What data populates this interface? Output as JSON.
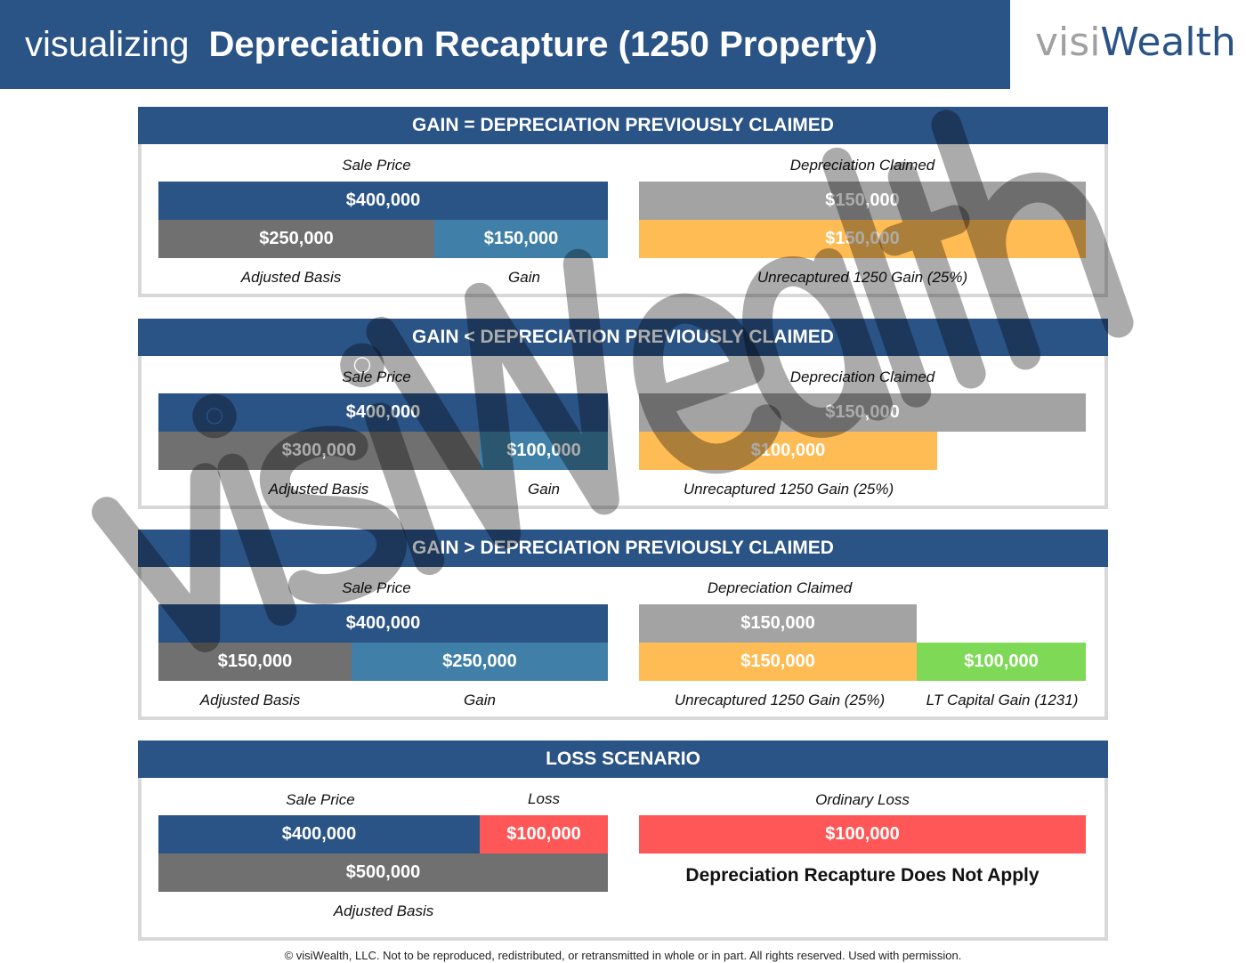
{
  "header": {
    "prefix": "visualizing",
    "title": "Depreciation Recapture (1250 Property)"
  },
  "logo": {
    "part1": "visi",
    "part2": "Wealth"
  },
  "watermark": "visiWealth",
  "sections": [
    {
      "title": "GAIN = DEPRECIATION PREVIOUSLY CLAIMED",
      "left_label": "Sale Price",
      "right_label": "Depreciation Claimed",
      "sale": "$400,000",
      "basis": "$250,000",
      "gain": "$150,000",
      "dep": "$150,000",
      "unrec": "$150,000",
      "basis_label": "Adjusted Basis",
      "gain_label": "Gain",
      "unrec_label": "Unrecaptured 1250 Gain (25%)"
    },
    {
      "title": "GAIN < DEPRECIATION PREVIOUSLY CLAIMED",
      "left_label": "Sale Price",
      "right_label": "Depreciation Claimed",
      "sale": "$400,000",
      "basis": "$300,000",
      "gain": "$100,000",
      "dep": "$150,000",
      "unrec": "$100,000",
      "basis_label": "Adjusted Basis",
      "gain_label": "Gain",
      "unrec_label": "Unrecaptured 1250 Gain (25%)"
    },
    {
      "title": "GAIN > DEPRECIATION PREVIOUSLY CLAIMED",
      "left_label": "Sale Price",
      "right_label": "Depreciation Claimed",
      "sale": "$400,000",
      "basis": "$150,000",
      "gain": "$250,000",
      "dep": "$150,000",
      "unrec": "$150,000",
      "ltcg": "$100,000",
      "basis_label": "Adjusted Basis",
      "gain_label": "Gain",
      "unrec_label": "Unrecaptured 1250 Gain (25%)",
      "ltcg_label": "LT Capital Gain (1231)"
    },
    {
      "title": "LOSS SCENARIO",
      "left_label": "Sale Price",
      "loss_label": "Loss",
      "right_label": "Ordinary Loss",
      "sale": "$400,000",
      "loss": "$100,000",
      "basis": "$500,000",
      "ord_loss": "$100,000",
      "basis_label": "Adjusted Basis",
      "note": "Depreciation Recapture Does Not Apply"
    }
  ],
  "footer": "© visiWealth, LLC. Not to be reproduced, redistributed, or retransmitted in whole or in part. All rights reserved. Used with permission."
}
